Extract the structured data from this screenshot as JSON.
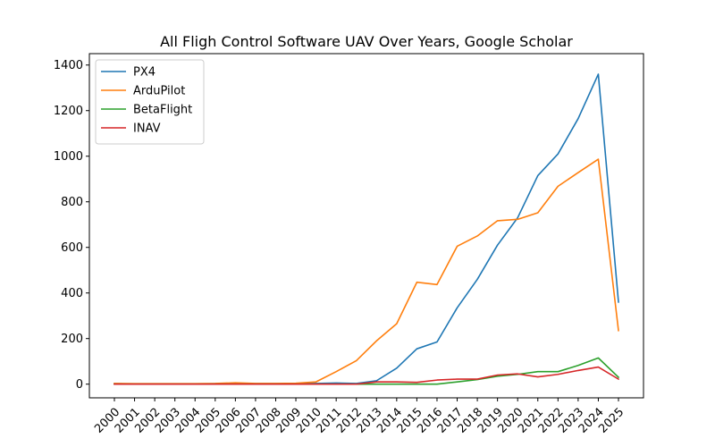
{
  "chart_data": {
    "type": "line",
    "title": "All Fligh Control Software UAV Over Years, Google Scholar",
    "xlabel": "",
    "ylabel": "",
    "x": [
      "2000",
      "2001",
      "2002",
      "2003",
      "2004",
      "2005",
      "2006",
      "2007",
      "2008",
      "2009",
      "2010",
      "2011",
      "2012",
      "2013",
      "2014",
      "2015",
      "2016",
      "2017",
      "2018",
      "2019",
      "2020",
      "2021",
      "2022",
      "2023",
      "2024",
      "2025"
    ],
    "yticks": [
      "0",
      "200",
      "400",
      "600",
      "800",
      "1000",
      "1200",
      "1400"
    ],
    "ylim": [
      -60,
      1450
    ],
    "grid": false,
    "legend_position": "top-left",
    "series": [
      {
        "name": "PX4",
        "color": "#1f77b4",
        "values": [
          2,
          1,
          1,
          1,
          1,
          2,
          2,
          2,
          2,
          2,
          3,
          5,
          3,
          15,
          70,
          155,
          185,
          335,
          460,
          610,
          730,
          915,
          1010,
          1165,
          1360,
          360
        ]
      },
      {
        "name": "ArduPilot",
        "color": "#ff7f0e",
        "values": [
          3,
          2,
          2,
          2,
          2,
          3,
          6,
          3,
          3,
          4,
          10,
          55,
          103,
          190,
          265,
          447,
          437,
          605,
          650,
          717,
          723,
          752,
          868,
          928,
          987,
          235
        ]
      },
      {
        "name": "BetaFlight",
        "color": "#2ca02c",
        "values": [
          0,
          0,
          0,
          0,
          0,
          0,
          0,
          0,
          0,
          0,
          0,
          0,
          0,
          0,
          0,
          0,
          0,
          10,
          20,
          35,
          43,
          55,
          55,
          82,
          115,
          30
        ]
      },
      {
        "name": "INAV",
        "color": "#d62728",
        "values": [
          0,
          0,
          0,
          0,
          0,
          0,
          0,
          0,
          0,
          0,
          0,
          0,
          0,
          10,
          10,
          8,
          18,
          22,
          22,
          40,
          45,
          32,
          43,
          60,
          75,
          22
        ]
      }
    ]
  }
}
